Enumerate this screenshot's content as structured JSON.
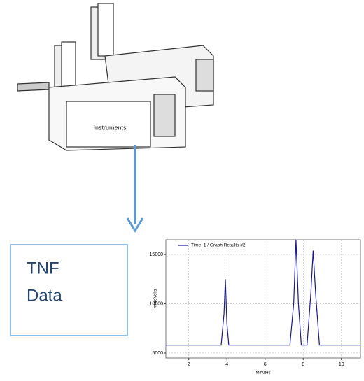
{
  "instrument": {
    "label": "Instruments"
  },
  "data_box": {
    "lines": [
      "TNF",
      "Data"
    ]
  },
  "chromatogram": {
    "type": "line",
    "legend": "Time_1 / Graph Results #2",
    "xlabel": "Minutes",
    "ylabel": "microVolts",
    "color": "#1a1a8c",
    "xlim": [
      0.8,
      11
    ],
    "ylim": [
      4500,
      16500
    ],
    "xticks": [
      2,
      4,
      6,
      8,
      10
    ],
    "yticks": [
      5000,
      10000,
      15000
    ],
    "x": [
      0.8,
      3.7,
      3.85,
      3.92,
      4.0,
      4.1,
      7.3,
      7.5,
      7.62,
      7.75,
      7.9,
      8.2,
      8.4,
      8.52,
      8.65,
      8.85,
      11
    ],
    "values": [
      5800,
      5800,
      9000,
      12500,
      8000,
      5800,
      5800,
      10000,
      16500,
      10000,
      5800,
      5800,
      11000,
      15400,
      11000,
      5800,
      5800
    ]
  }
}
